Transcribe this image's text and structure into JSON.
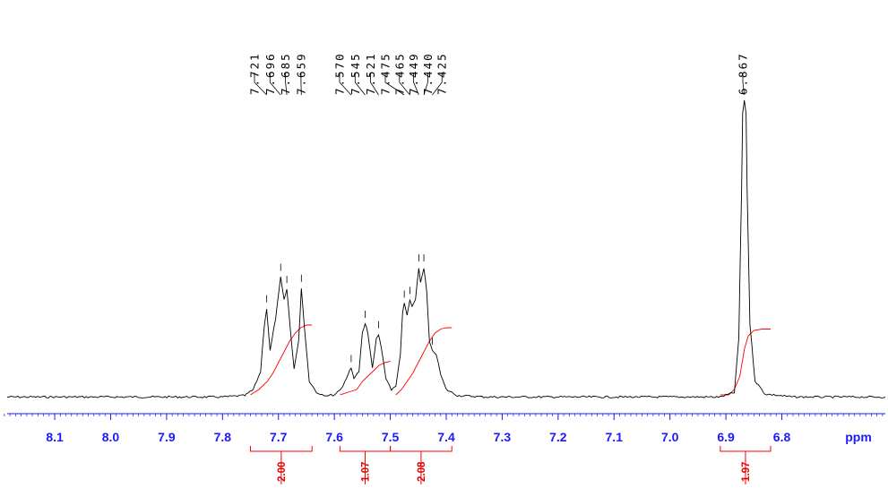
{
  "chart_data": {
    "type": "line",
    "title": "",
    "xlabel": "ppm",
    "ylabel": "",
    "x_reversed": true,
    "xlim": [
      8.185,
      6.615
    ],
    "x_ticks": [
      "8.1",
      "8.0",
      "7.9",
      "7.8",
      "7.7",
      "7.6",
      "7.5",
      "7.4",
      "7.3",
      "7.2",
      "7.1",
      "7.0",
      "6.9",
      "6.8"
    ],
    "x_tick_values": [
      8.1,
      8.0,
      7.9,
      7.8,
      7.7,
      7.6,
      7.5,
      7.4,
      7.3,
      7.2,
      7.1,
      7.0,
      6.9,
      6.8
    ],
    "series": [
      {
        "color": "#000000",
        "x": [
          8.185,
          7.8,
          7.76,
          7.745,
          7.732,
          7.725,
          7.721,
          7.715,
          7.705,
          7.696,
          7.69,
          7.685,
          7.679,
          7.672,
          7.664,
          7.659,
          7.654,
          7.645,
          7.632,
          7.615,
          7.6,
          7.585,
          7.575,
          7.57,
          7.565,
          7.556,
          7.55,
          7.545,
          7.54,
          7.532,
          7.525,
          7.521,
          7.516,
          7.508,
          7.498,
          7.49,
          7.482,
          7.478,
          7.475,
          7.47,
          7.465,
          7.461,
          7.455,
          7.449,
          7.446,
          7.44,
          7.435,
          7.43,
          7.425,
          7.418,
          7.41,
          7.4,
          7.38,
          7.33,
          6.91,
          6.885,
          6.877,
          6.872,
          6.87,
          6.867,
          6.864,
          6.862,
          6.857,
          6.848,
          6.83,
          6.78,
          6.615
        ],
        "y": [
          0.005,
          0.005,
          0.01,
          0.03,
          0.09,
          0.25,
          0.302,
          0.16,
          0.27,
          0.408,
          0.33,
          0.367,
          0.24,
          0.1,
          0.19,
          0.371,
          0.25,
          0.06,
          0.02,
          0.01,
          0.012,
          0.04,
          0.085,
          0.101,
          0.07,
          0.09,
          0.22,
          0.25,
          0.22,
          0.1,
          0.2,
          0.215,
          0.17,
          0.07,
          0.03,
          0.04,
          0.15,
          0.29,
          0.318,
          0.28,
          0.33,
          0.31,
          0.33,
          0.44,
          0.39,
          0.44,
          0.36,
          0.19,
          0.16,
          0.15,
          0.08,
          0.03,
          0.01,
          0.005,
          0.005,
          0.02,
          0.2,
          0.7,
          0.96,
          1.0,
          0.96,
          0.7,
          0.25,
          0.06,
          0.015,
          0.005,
          0.005
        ]
      }
    ],
    "integral_curves": [
      {
        "color": "#ff0000",
        "x": [
          7.75,
          7.735,
          7.72,
          7.71,
          7.7,
          7.69,
          7.68,
          7.67,
          7.66,
          7.65,
          7.64
        ],
        "y": [
          0.0,
          0.02,
          0.05,
          0.08,
          0.12,
          0.16,
          0.2,
          0.23,
          0.25,
          0.26,
          0.26
        ]
      },
      {
        "color": "#ff0000",
        "x": [
          7.59,
          7.575,
          7.56,
          7.55,
          7.54,
          7.53,
          7.52,
          7.51,
          7.5
        ],
        "y": [
          0.0,
          0.01,
          0.02,
          0.05,
          0.07,
          0.09,
          0.11,
          0.12,
          0.125
        ]
      },
      {
        "color": "#ff0000",
        "x": [
          7.49,
          7.48,
          7.47,
          7.46,
          7.45,
          7.44,
          7.43,
          7.42,
          7.41,
          7.4,
          7.39
        ],
        "y": [
          0.0,
          0.02,
          0.05,
          0.08,
          0.12,
          0.16,
          0.2,
          0.23,
          0.245,
          0.25,
          0.25
        ]
      },
      {
        "color": "#ff0000",
        "x": [
          6.91,
          6.895,
          6.885,
          6.875,
          6.867,
          6.86,
          6.85,
          6.835,
          6.82
        ],
        "y": [
          0.0,
          0.0,
          0.02,
          0.07,
          0.17,
          0.22,
          0.24,
          0.245,
          0.245
        ]
      }
    ],
    "peak_labels": [
      {
        "text": "7.721",
        "x": 7.721
      },
      {
        "text": "7.696",
        "x": 7.696
      },
      {
        "text": "7.685",
        "x": 7.685
      },
      {
        "text": "7.659",
        "x": 7.659
      },
      {
        "text": "7.570",
        "x": 7.57
      },
      {
        "text": "7.545",
        "x": 7.545
      },
      {
        "text": "7.521",
        "x": 7.521
      },
      {
        "text": "7.475",
        "x": 7.475
      },
      {
        "text": "7.465",
        "x": 7.465
      },
      {
        "text": "7.449",
        "x": 7.449
      },
      {
        "text": "7.440",
        "x": 7.44
      },
      {
        "text": "7.425",
        "x": 7.425
      },
      {
        "text": "6.867",
        "x": 6.867
      }
    ],
    "integrals": [
      {
        "value": "2.00",
        "from": 7.75,
        "to": 7.64
      },
      {
        "value": "1.07",
        "from": 7.59,
        "to": 7.5
      },
      {
        "value": "2.08",
        "from": 7.5,
        "to": 7.39
      },
      {
        "value": "1.97",
        "from": 6.91,
        "to": 6.82
      }
    ],
    "grid": false,
    "legend": "none"
  }
}
